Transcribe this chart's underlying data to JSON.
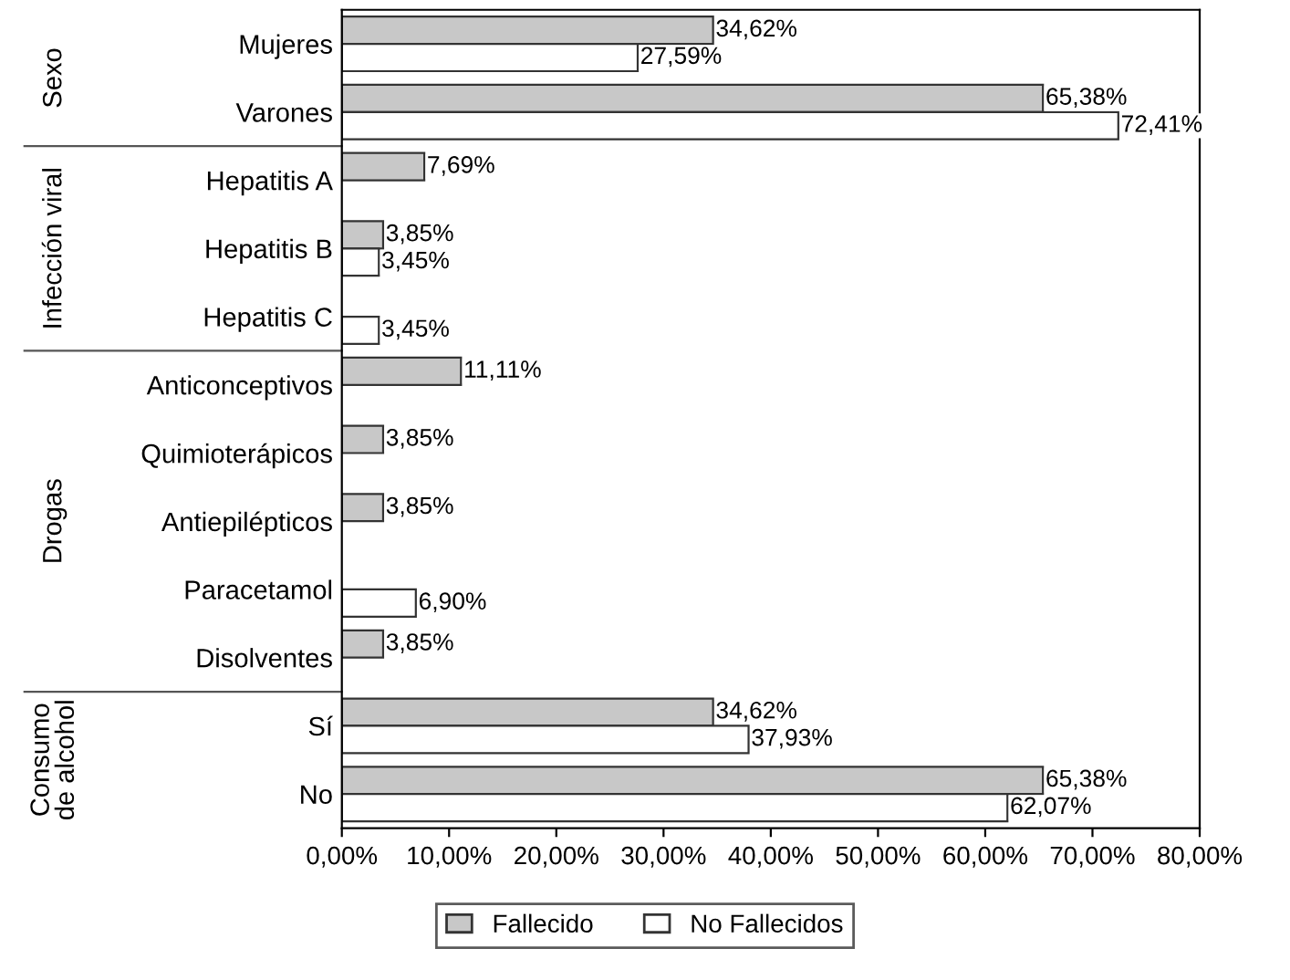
{
  "chart_data": {
    "type": "bar",
    "orientation": "horizontal",
    "categories": [
      "Mujeres",
      "Varones",
      "Hepatitis A",
      "Hepatitis B",
      "Hepatitis C",
      "Anticonceptivos",
      "Quimioterápicos",
      "Antiepilépticos",
      "Paracetamol",
      "Disolventes",
      "Sí",
      "No"
    ],
    "series": [
      {
        "name": "Fallecido",
        "color": "#c8c8c8",
        "values": [
          34.62,
          65.38,
          7.69,
          3.85,
          null,
          11.11,
          3.85,
          3.85,
          null,
          3.85,
          34.62,
          65.38
        ],
        "value_labels": [
          "34,62%",
          "65,38%",
          "7,69%",
          "3,85%",
          null,
          "11,11%",
          "3,85%",
          "3,85%",
          null,
          "3,85%",
          "34,62%",
          "65,38%"
        ]
      },
      {
        "name": "No Fallecidos",
        "color": "#ffffff",
        "values": [
          27.59,
          72.41,
          null,
          3.45,
          3.45,
          null,
          null,
          null,
          6.9,
          null,
          37.93,
          62.07
        ],
        "value_labels": [
          "27,59%",
          "72,41%",
          null,
          "3,45%",
          "3,45%",
          null,
          null,
          null,
          "6,90%",
          null,
          "37,93%",
          "62,07%"
        ]
      }
    ],
    "xlim": [
      0,
      80
    ],
    "xticks": [
      {
        "value": 0,
        "label": "0,00%"
      },
      {
        "value": 10,
        "label": "10,00%"
      },
      {
        "value": 20,
        "label": "20,00%"
      },
      {
        "value": 30,
        "label": "30,00%"
      },
      {
        "value": 40,
        "label": "40,00%"
      },
      {
        "value": 50,
        "label": "50,00%"
      },
      {
        "value": 60,
        "label": "60,00%"
      },
      {
        "value": 70,
        "label": "70,00%"
      },
      {
        "value": 80,
        "label": "80,00%"
      }
    ],
    "annotations": [
      "Sexo",
      "Infección viral",
      "Drogas",
      "Consumo\nde alcohol"
    ],
    "legend": "bottom",
    "grid": false
  }
}
